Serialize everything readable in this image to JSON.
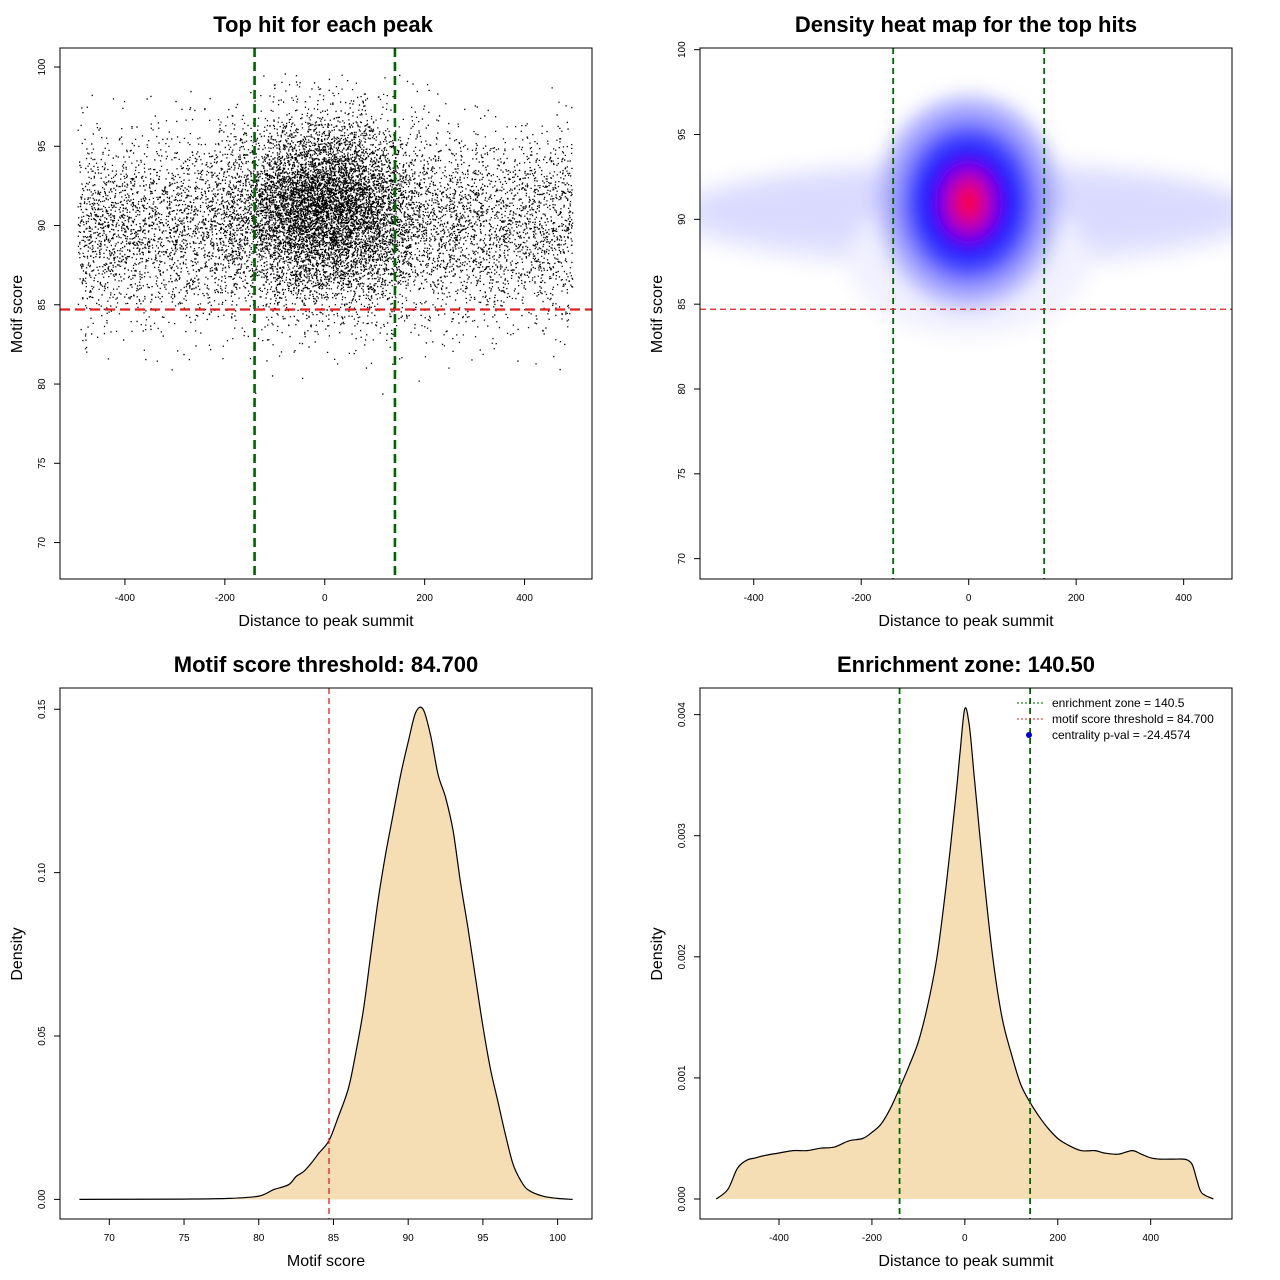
{
  "colors": {
    "zone": "#006400",
    "threshold": "#dd2222",
    "fill": "#f5deb3",
    "points": "#000000",
    "pval_marker": "#0000cc"
  },
  "chart_data": [
    {
      "id": "scatter",
      "type": "scatter",
      "title": "Top hit for each peak",
      "xlabel": "Distance to peak summit",
      "ylabel": "Motif score",
      "xlim": [
        -530,
        535
      ],
      "ylim": [
        67.7,
        101.2
      ],
      "xticks": [
        -400,
        -200,
        0,
        200,
        400
      ],
      "xticklabels": [
        "-400",
        "-200",
        "0",
        "200",
        "400"
      ],
      "yticks": [
        70,
        75,
        80,
        85,
        90,
        95,
        100
      ],
      "yticklabels": [
        "70",
        "75",
        "80",
        "85",
        "90",
        "95",
        "100"
      ],
      "vlines": [
        -140.5,
        140.5
      ],
      "hlines": [
        84.7
      ],
      "grid": false,
      "point_groups": [
        {
          "name": "central cluster",
          "n": 6500,
          "x_mean": 0,
          "x_sd": 90,
          "y_mean": 91.2,
          "y_sd": 2.8
        },
        {
          "name": "uniform background",
          "n": 7000,
          "x_range": [
            -495,
            495
          ],
          "y_mean": 90.0,
          "y_sd": 2.9
        }
      ]
    },
    {
      "id": "heatmap",
      "type": "heatmap",
      "title": "Density heat map for the top hits",
      "xlabel": "Distance to peak summit",
      "ylabel": "Motif score",
      "xlim": [
        -500,
        490
      ],
      "ylim": [
        68.8,
        100.1
      ],
      "xticks": [
        -400,
        -200,
        0,
        200,
        400
      ],
      "xticklabels": [
        "-400",
        "-200",
        "0",
        "200",
        "400"
      ],
      "yticks": [
        70,
        75,
        80,
        85,
        90,
        95,
        100
      ],
      "yticklabels": [
        "70",
        "75",
        "80",
        "85",
        "90",
        "95",
        "100"
      ],
      "vlines": [
        -140.5,
        140.5
      ],
      "hlines": [
        84.7
      ],
      "peak": {
        "x": 0,
        "y": 91.0
      },
      "color_scale": [
        "#ffffff",
        "#0000ff",
        "#ff0000"
      ]
    },
    {
      "id": "score_density",
      "type": "area",
      "title": "Motif score threshold: 84.700",
      "xlabel": "Motif score",
      "ylabel": "Density",
      "xlim": [
        66.7,
        102.3
      ],
      "ylim": [
        -0.006,
        0.1565
      ],
      "xticks": [
        70,
        75,
        80,
        85,
        90,
        95,
        100
      ],
      "xticklabels": [
        "70",
        "75",
        "80",
        "85",
        "90",
        "95",
        "100"
      ],
      "yticks": [
        0.0,
        0.05,
        0.1,
        0.15
      ],
      "yticklabels": [
        "0.00",
        "0.05",
        "0.10",
        "0.15"
      ],
      "vlines": [
        84.7
      ],
      "x": [
        68,
        75,
        78,
        80,
        81,
        82,
        82.5,
        83,
        83.5,
        84,
        84.7,
        85.3,
        86,
        86.5,
        87,
        87.5,
        88,
        88.5,
        89,
        89.5,
        90,
        90.5,
        91,
        91.5,
        92,
        92.5,
        93,
        93.5,
        94,
        94.5,
        95,
        95.5,
        96,
        96.5,
        97,
        97.5,
        98,
        99,
        100,
        101
      ],
      "y": [
        0,
        0.0001,
        0.0003,
        0.001,
        0.003,
        0.0045,
        0.007,
        0.0085,
        0.011,
        0.014,
        0.018,
        0.025,
        0.034,
        0.045,
        0.058,
        0.075,
        0.092,
        0.106,
        0.118,
        0.13,
        0.14,
        0.149,
        0.15,
        0.142,
        0.13,
        0.123,
        0.113,
        0.097,
        0.083,
        0.068,
        0.053,
        0.04,
        0.03,
        0.02,
        0.011,
        0.006,
        0.003,
        0.001,
        0.0003,
        0
      ]
    },
    {
      "id": "distance_density",
      "type": "area",
      "title": "Enrichment zone: 140.50",
      "xlabel": "Distance to peak summit",
      "ylabel": "Density",
      "xlim": [
        -570,
        575
      ],
      "ylim": [
        -0.000165,
        0.00422
      ],
      "xticks": [
        -400,
        -200,
        0,
        200,
        400
      ],
      "xticklabels": [
        "-400",
        "-200",
        "0",
        "200",
        "400"
      ],
      "yticks": [
        0.0,
        0.001,
        0.002,
        0.003,
        0.004
      ],
      "yticklabels": [
        "0.000",
        "0.001",
        "0.002",
        "0.003",
        "0.004"
      ],
      "vlines": [
        -140.5,
        140.5
      ],
      "x": [
        -535,
        -510,
        -490,
        -470,
        -450,
        -430,
        -400,
        -370,
        -340,
        -310,
        -280,
        -250,
        -220,
        -200,
        -180,
        -160,
        -140,
        -120,
        -100,
        -80,
        -60,
        -40,
        -20,
        -10,
        0,
        10,
        20,
        40,
        60,
        80,
        100,
        120,
        140,
        160,
        180,
        200,
        220,
        250,
        280,
        300,
        330,
        360,
        380,
        400,
        420,
        450,
        470,
        480,
        490,
        500,
        510,
        535
      ],
      "y": [
        0,
        8e-05,
        0.00025,
        0.00032,
        0.00034,
        0.00036,
        0.00038,
        0.0004,
        0.0004,
        0.00042,
        0.00043,
        0.00048,
        0.0005,
        0.00055,
        0.00062,
        0.00075,
        0.00092,
        0.0011,
        0.0013,
        0.0016,
        0.002,
        0.0026,
        0.0033,
        0.0037,
        0.00405,
        0.0039,
        0.0035,
        0.0027,
        0.002,
        0.0015,
        0.0012,
        0.00095,
        0.0008,
        0.00068,
        0.00058,
        0.0005,
        0.00045,
        0.0004,
        0.0004,
        0.00038,
        0.00037,
        0.0004,
        0.00037,
        0.00034,
        0.00033,
        0.00033,
        0.00033,
        0.00032,
        0.00028,
        0.00015,
        5e-05,
        0
      ]
    }
  ],
  "legend": {
    "items": [
      {
        "label": "enrichment zone = 140.5",
        "kind": "dotted-line",
        "color": "#006400"
      },
      {
        "label": "motif score threshold = 84.700",
        "kind": "dotted-line",
        "color": "#dd2222"
      },
      {
        "label": "centrality p-val = -24.4574",
        "kind": "point",
        "color": "#0000cc"
      }
    ]
  }
}
